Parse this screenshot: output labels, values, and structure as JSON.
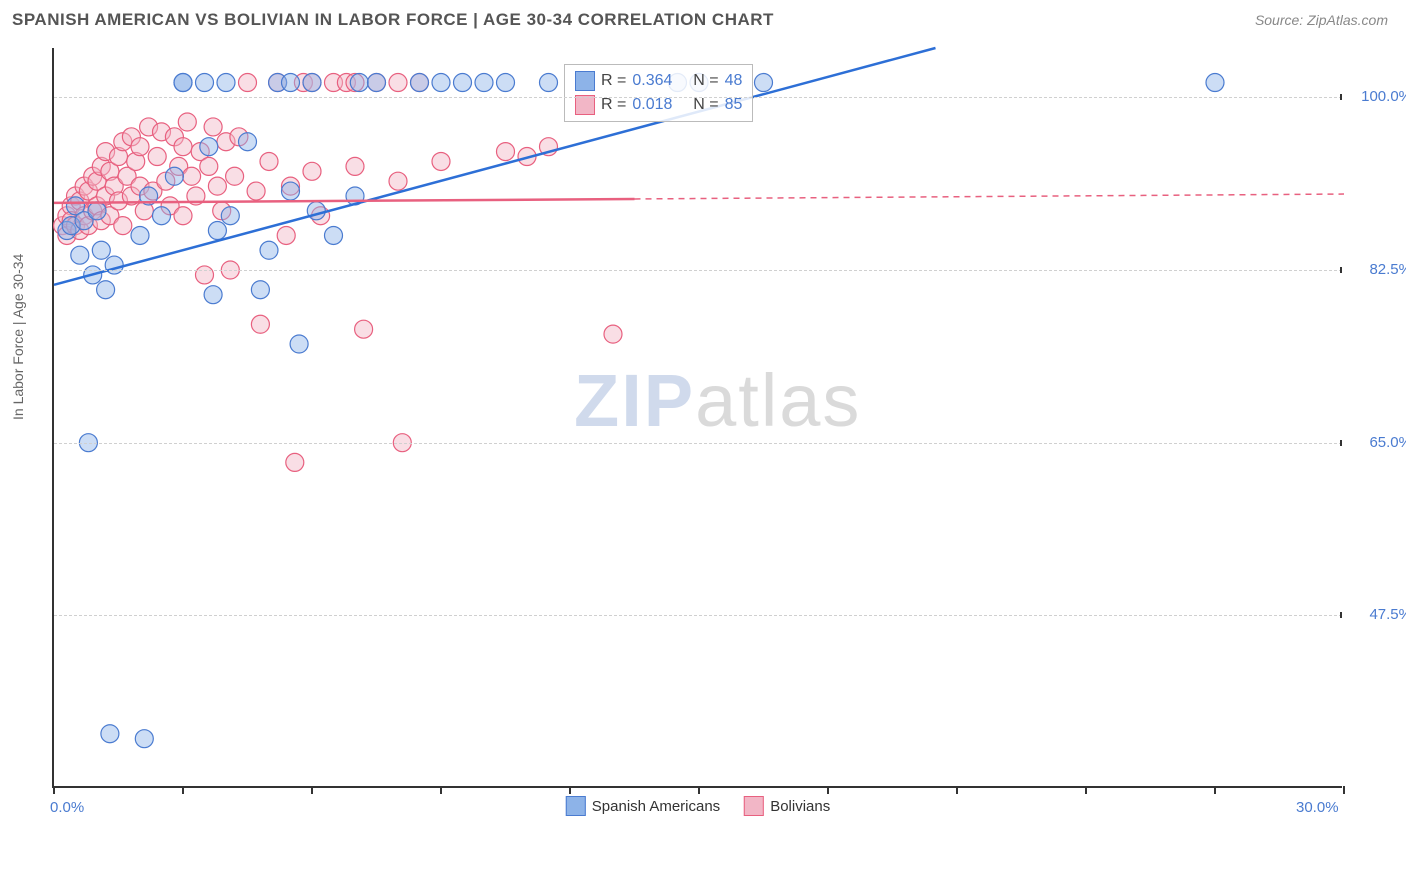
{
  "header": {
    "title": "SPANISH AMERICAN VS BOLIVIAN IN LABOR FORCE | AGE 30-34 CORRELATION CHART",
    "source": "Source: ZipAtlas.com"
  },
  "chart": {
    "type": "scatter",
    "ylabel": "In Labor Force | Age 30-34",
    "xlim": [
      0,
      30
    ],
    "ylim": [
      30,
      105
    ],
    "xticks_major": [
      0,
      30
    ],
    "xticks_minor": [
      3,
      6,
      9,
      12,
      15,
      18,
      21,
      24,
      27
    ],
    "yticks": [
      47.5,
      65.0,
      82.5,
      100.0
    ],
    "ytick_labels": [
      "47.5%",
      "65.0%",
      "82.5%",
      "100.0%"
    ],
    "xtick_labels": {
      "0": "0.0%",
      "30": "30.0%"
    },
    "background_color": "#ffffff",
    "grid_color": "#d0d0d0",
    "axis_color": "#333333",
    "label_color": "#666666",
    "tick_label_color": "#4a7bd0",
    "marker_radius": 9,
    "marker_opacity": 0.45,
    "line_width": 2.5,
    "series": {
      "spanish": {
        "label": "Spanish Americans",
        "fill_color": "#8db3e8",
        "stroke_color": "#4a7bd0",
        "line_color": "#2d6fd6",
        "r_value": "0.364",
        "n_value": "48",
        "trend": {
          "x1": 0,
          "y1": 81.0,
          "x2": 20.5,
          "y2": 105.0
        },
        "points": [
          [
            0.3,
            86.5
          ],
          [
            0.4,
            87.0
          ],
          [
            0.5,
            89.0
          ],
          [
            0.6,
            84.0
          ],
          [
            0.7,
            87.5
          ],
          [
            0.9,
            82.0
          ],
          [
            1.0,
            88.5
          ],
          [
            1.1,
            84.5
          ],
          [
            1.2,
            80.5
          ],
          [
            1.4,
            83.0
          ],
          [
            0.8,
            65.0
          ],
          [
            1.3,
            35.5
          ],
          [
            2.1,
            35.0
          ],
          [
            2.0,
            86.0
          ],
          [
            2.2,
            90.0
          ],
          [
            2.5,
            88.0
          ],
          [
            2.8,
            92.0
          ],
          [
            3.0,
            101.5
          ],
          [
            3.0,
            101.5
          ],
          [
            3.5,
            101.5
          ],
          [
            3.6,
            95.0
          ],
          [
            3.7,
            80.0
          ],
          [
            3.8,
            86.5
          ],
          [
            4.0,
            101.5
          ],
          [
            4.1,
            88.0
          ],
          [
            4.5,
            95.5
          ],
          [
            4.8,
            80.5
          ],
          [
            5.0,
            84.5
          ],
          [
            5.2,
            101.5
          ],
          [
            5.5,
            90.5
          ],
          [
            5.5,
            101.5
          ],
          [
            5.7,
            75.0
          ],
          [
            6.0,
            101.5
          ],
          [
            6.1,
            88.5
          ],
          [
            6.5,
            86.0
          ],
          [
            7.0,
            90.0
          ],
          [
            7.1,
            101.5
          ],
          [
            7.5,
            101.5
          ],
          [
            8.5,
            101.5
          ],
          [
            9.0,
            101.5
          ],
          [
            9.5,
            101.5
          ],
          [
            10.0,
            101.5
          ],
          [
            10.5,
            101.5
          ],
          [
            11.5,
            101.5
          ],
          [
            14.5,
            101.5
          ],
          [
            15.0,
            101.5
          ],
          [
            16.5,
            101.5
          ],
          [
            27.0,
            101.5
          ]
        ]
      },
      "bolivian": {
        "label": "Bolivians",
        "fill_color": "#f2b6c6",
        "stroke_color": "#e8607f",
        "line_color": "#e8607f",
        "r_value": "0.018",
        "n_value": "85",
        "trend_solid": {
          "x1": 0,
          "y1": 89.3,
          "x2": 13.5,
          "y2": 89.7
        },
        "trend_dashed": {
          "x1": 13.5,
          "y1": 89.7,
          "x2": 30.0,
          "y2": 90.2
        },
        "points": [
          [
            0.2,
            87.0
          ],
          [
            0.3,
            88.0
          ],
          [
            0.3,
            86.0
          ],
          [
            0.4,
            89.0
          ],
          [
            0.4,
            87.5
          ],
          [
            0.5,
            87.0
          ],
          [
            0.5,
            90.0
          ],
          [
            0.6,
            86.5
          ],
          [
            0.6,
            89.5
          ],
          [
            0.7,
            88.0
          ],
          [
            0.7,
            91.0
          ],
          [
            0.8,
            90.5
          ],
          [
            0.8,
            87.0
          ],
          [
            0.9,
            92.0
          ],
          [
            0.9,
            88.5
          ],
          [
            1.0,
            91.5
          ],
          [
            1.0,
            89.0
          ],
          [
            1.1,
            93.0
          ],
          [
            1.1,
            87.5
          ],
          [
            1.2,
            90.0
          ],
          [
            1.2,
            94.5
          ],
          [
            1.3,
            88.0
          ],
          [
            1.3,
            92.5
          ],
          [
            1.4,
            91.0
          ],
          [
            1.5,
            94.0
          ],
          [
            1.5,
            89.5
          ],
          [
            1.6,
            95.5
          ],
          [
            1.6,
            87.0
          ],
          [
            1.7,
            92.0
          ],
          [
            1.8,
            90.0
          ],
          [
            1.8,
            96.0
          ],
          [
            1.9,
            93.5
          ],
          [
            2.0,
            91.0
          ],
          [
            2.0,
            95.0
          ],
          [
            2.1,
            88.5
          ],
          [
            2.2,
            97.0
          ],
          [
            2.3,
            90.5
          ],
          [
            2.4,
            94.0
          ],
          [
            2.5,
            96.5
          ],
          [
            2.6,
            91.5
          ],
          [
            2.7,
            89.0
          ],
          [
            2.8,
            96.0
          ],
          [
            2.9,
            93.0
          ],
          [
            3.0,
            95.0
          ],
          [
            3.0,
            88.0
          ],
          [
            3.1,
            97.5
          ],
          [
            3.2,
            92.0
          ],
          [
            3.3,
            90.0
          ],
          [
            3.4,
            94.5
          ],
          [
            3.5,
            82.0
          ],
          [
            3.6,
            93.0
          ],
          [
            3.7,
            97.0
          ],
          [
            3.8,
            91.0
          ],
          [
            3.9,
            88.5
          ],
          [
            4.0,
            95.5
          ],
          [
            4.1,
            82.5
          ],
          [
            4.2,
            92.0
          ],
          [
            4.3,
            96.0
          ],
          [
            4.5,
            101.5
          ],
          [
            4.7,
            90.5
          ],
          [
            4.8,
            77.0
          ],
          [
            5.0,
            93.5
          ],
          [
            5.2,
            101.5
          ],
          [
            5.4,
            86.0
          ],
          [
            5.5,
            91.0
          ],
          [
            5.6,
            63.0
          ],
          [
            5.8,
            101.5
          ],
          [
            6.0,
            92.5
          ],
          [
            6.0,
            101.5
          ],
          [
            6.2,
            88.0
          ],
          [
            6.5,
            101.5
          ],
          [
            6.8,
            101.5
          ],
          [
            7.0,
            93.0
          ],
          [
            7.0,
            101.5
          ],
          [
            7.2,
            76.5
          ],
          [
            7.5,
            101.5
          ],
          [
            8.0,
            91.5
          ],
          [
            8.0,
            101.5
          ],
          [
            8.1,
            65.0
          ],
          [
            8.5,
            101.5
          ],
          [
            9.0,
            93.5
          ],
          [
            10.5,
            94.5
          ],
          [
            11.0,
            94.0
          ],
          [
            11.5,
            95.0
          ],
          [
            13.0,
            76.0
          ]
        ]
      }
    }
  },
  "legend_stats": {
    "r_label": "R =",
    "n_label": "N ="
  },
  "watermark": {
    "text1": "ZIP",
    "text2": "atlas"
  }
}
